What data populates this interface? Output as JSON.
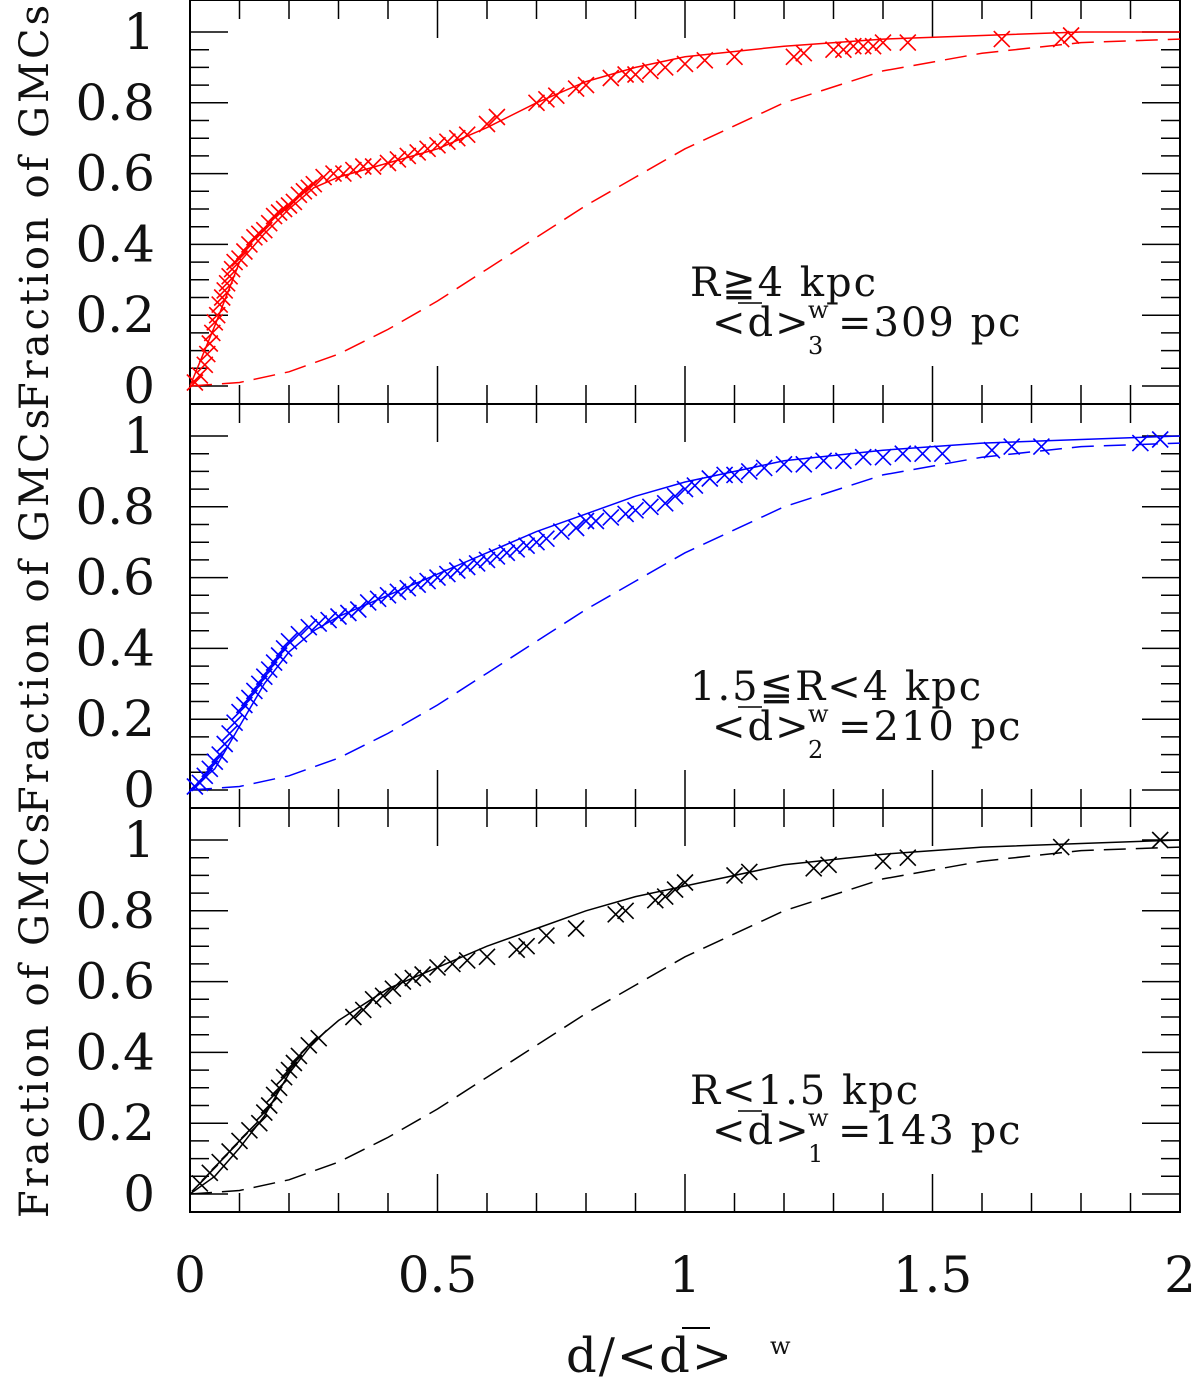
{
  "chart_data": {
    "type": "line",
    "xlabel": "d/<d>",
    "xlabel_sup": "w",
    "ylabel": "Fraction of GMCs",
    "xlim": [
      0,
      2
    ],
    "ylim": [
      0,
      1.05
    ],
    "x_ticks": [
      0,
      0.5,
      1,
      1.5,
      2
    ],
    "x_tick_labels": [
      "0",
      "0.5",
      "1",
      "1.5",
      "2"
    ],
    "y_ticks": [
      0,
      0.2,
      0.4,
      0.6,
      0.8,
      1
    ],
    "y_tick_labels": [
      "0",
      "0.2",
      "0.4",
      "0.6",
      "0.8",
      "1"
    ],
    "panels": [
      {
        "name": "outer",
        "color": "#ff0000",
        "annotation_line1": "R≧4 kpc",
        "annotation_line2_pre": "<d>",
        "annotation_sup": "w",
        "annotation_sub": "3",
        "annotation_line2_post": "=309 pc",
        "fit_curve": {
          "x": [
            0,
            0.05,
            0.1,
            0.15,
            0.2,
            0.25,
            0.3,
            0.4,
            0.5,
            0.6,
            0.7,
            0.8,
            0.9,
            1.0,
            1.2,
            1.4,
            1.6,
            1.8,
            2.0
          ],
          "y": [
            0,
            0.17,
            0.35,
            0.43,
            0.5,
            0.56,
            0.59,
            0.63,
            0.67,
            0.73,
            0.8,
            0.86,
            0.9,
            0.93,
            0.96,
            0.98,
            0.99,
            1.0,
            1.0
          ]
        },
        "random_curve": {
          "x": [
            0,
            0.1,
            0.2,
            0.3,
            0.4,
            0.5,
            0.6,
            0.7,
            0.8,
            0.9,
            1.0,
            1.2,
            1.4,
            1.6,
            1.8,
            2.0
          ],
          "y": [
            0,
            0.01,
            0.04,
            0.09,
            0.16,
            0.24,
            0.33,
            0.42,
            0.51,
            0.59,
            0.67,
            0.8,
            0.89,
            0.94,
            0.97,
            0.98
          ]
        },
        "points": {
          "x": [
            0.01,
            0.02,
            0.03,
            0.035,
            0.04,
            0.045,
            0.05,
            0.055,
            0.06,
            0.065,
            0.07,
            0.075,
            0.08,
            0.085,
            0.09,
            0.1,
            0.11,
            0.12,
            0.13,
            0.14,
            0.15,
            0.16,
            0.17,
            0.18,
            0.19,
            0.2,
            0.21,
            0.22,
            0.23,
            0.24,
            0.25,
            0.27,
            0.29,
            0.31,
            0.33,
            0.35,
            0.37,
            0.4,
            0.42,
            0.44,
            0.46,
            0.48,
            0.5,
            0.52,
            0.54,
            0.56,
            0.6,
            0.62,
            0.7,
            0.72,
            0.74,
            0.78,
            0.8,
            0.85,
            0.88,
            0.9,
            0.93,
            0.96,
            1.0,
            1.04,
            1.1,
            1.22,
            1.24,
            1.3,
            1.32,
            1.34,
            1.36,
            1.38,
            1.4,
            1.45,
            1.64,
            1.76,
            1.78
          ],
          "y": [
            0.01,
            0.03,
            0.06,
            0.09,
            0.12,
            0.15,
            0.18,
            0.2,
            0.23,
            0.25,
            0.27,
            0.29,
            0.31,
            0.33,
            0.35,
            0.36,
            0.38,
            0.4,
            0.42,
            0.43,
            0.44,
            0.46,
            0.48,
            0.49,
            0.5,
            0.51,
            0.52,
            0.54,
            0.55,
            0.56,
            0.57,
            0.59,
            0.6,
            0.6,
            0.61,
            0.62,
            0.62,
            0.63,
            0.64,
            0.65,
            0.66,
            0.67,
            0.68,
            0.69,
            0.7,
            0.71,
            0.74,
            0.76,
            0.8,
            0.81,
            0.82,
            0.84,
            0.85,
            0.87,
            0.88,
            0.88,
            0.89,
            0.9,
            0.91,
            0.92,
            0.93,
            0.93,
            0.94,
            0.95,
            0.95,
            0.96,
            0.96,
            0.96,
            0.97,
            0.97,
            0.98,
            0.98,
            0.99
          ]
        }
      },
      {
        "name": "middle",
        "color": "#0000ff",
        "annotation_line1": "1.5≦R<4 kpc",
        "annotation_line2_pre": "<d>",
        "annotation_sup": "w",
        "annotation_sub": "2",
        "annotation_line2_post": "=210 pc",
        "fit_curve": {
          "x": [
            0,
            0.05,
            0.1,
            0.15,
            0.2,
            0.25,
            0.3,
            0.4,
            0.5,
            0.6,
            0.7,
            0.8,
            0.9,
            1.0,
            1.2,
            1.4,
            1.6,
            1.8,
            2.0
          ],
          "y": [
            0,
            0.06,
            0.18,
            0.3,
            0.39,
            0.45,
            0.49,
            0.55,
            0.61,
            0.67,
            0.73,
            0.78,
            0.83,
            0.87,
            0.93,
            0.96,
            0.98,
            0.99,
            1.0
          ]
        },
        "random_curve": {
          "x": [
            0,
            0.1,
            0.2,
            0.3,
            0.4,
            0.5,
            0.6,
            0.7,
            0.8,
            0.9,
            1.0,
            1.2,
            1.4,
            1.6,
            1.8,
            2.0
          ],
          "y": [
            0,
            0.01,
            0.04,
            0.09,
            0.16,
            0.24,
            0.33,
            0.42,
            0.51,
            0.59,
            0.67,
            0.8,
            0.89,
            0.94,
            0.97,
            0.98
          ]
        },
        "points": {
          "x": [
            0.01,
            0.02,
            0.03,
            0.04,
            0.05,
            0.06,
            0.07,
            0.08,
            0.09,
            0.1,
            0.11,
            0.12,
            0.13,
            0.14,
            0.15,
            0.16,
            0.17,
            0.18,
            0.19,
            0.2,
            0.22,
            0.24,
            0.26,
            0.28,
            0.3,
            0.32,
            0.34,
            0.36,
            0.38,
            0.4,
            0.42,
            0.44,
            0.46,
            0.48,
            0.5,
            0.52,
            0.54,
            0.56,
            0.58,
            0.6,
            0.62,
            0.64,
            0.66,
            0.68,
            0.7,
            0.72,
            0.75,
            0.78,
            0.8,
            0.82,
            0.85,
            0.88,
            0.9,
            0.93,
            0.96,
            0.98,
            1.0,
            1.02,
            1.05,
            1.08,
            1.1,
            1.13,
            1.16,
            1.2,
            1.24,
            1.28,
            1.32,
            1.36,
            1.4,
            1.44,
            1.48,
            1.52,
            1.62,
            1.66,
            1.72,
            1.92,
            1.96
          ],
          "y": [
            0.01,
            0.02,
            0.04,
            0.06,
            0.08,
            0.1,
            0.13,
            0.16,
            0.19,
            0.22,
            0.24,
            0.26,
            0.28,
            0.3,
            0.32,
            0.34,
            0.36,
            0.38,
            0.4,
            0.42,
            0.44,
            0.46,
            0.47,
            0.48,
            0.49,
            0.5,
            0.51,
            0.53,
            0.54,
            0.55,
            0.56,
            0.57,
            0.58,
            0.59,
            0.6,
            0.61,
            0.62,
            0.63,
            0.64,
            0.65,
            0.66,
            0.67,
            0.68,
            0.69,
            0.7,
            0.71,
            0.73,
            0.74,
            0.76,
            0.76,
            0.77,
            0.78,
            0.79,
            0.8,
            0.81,
            0.83,
            0.85,
            0.86,
            0.88,
            0.89,
            0.89,
            0.9,
            0.91,
            0.92,
            0.92,
            0.93,
            0.93,
            0.94,
            0.94,
            0.95,
            0.95,
            0.95,
            0.96,
            0.97,
            0.97,
            0.98,
            0.99
          ]
        }
      },
      {
        "name": "inner",
        "color": "#000000",
        "annotation_line1": "R<1.5 kpc",
        "annotation_line2_pre": "<d>",
        "annotation_sup": "w",
        "annotation_sub": "1",
        "annotation_line2_post": "=143 pc",
        "fit_curve": {
          "x": [
            0,
            0.05,
            0.1,
            0.15,
            0.2,
            0.25,
            0.3,
            0.4,
            0.5,
            0.6,
            0.7,
            0.8,
            0.9,
            1.0,
            1.2,
            1.4,
            1.6,
            1.8,
            2.0
          ],
          "y": [
            0,
            0.05,
            0.13,
            0.22,
            0.34,
            0.43,
            0.49,
            0.58,
            0.64,
            0.7,
            0.75,
            0.8,
            0.84,
            0.87,
            0.93,
            0.96,
            0.98,
            0.99,
            1.0
          ]
        },
        "random_curve": {
          "x": [
            0,
            0.1,
            0.2,
            0.3,
            0.4,
            0.5,
            0.6,
            0.7,
            0.8,
            0.9,
            1.0,
            1.2,
            1.4,
            1.6,
            1.8,
            2.0
          ],
          "y": [
            0,
            0.01,
            0.04,
            0.09,
            0.16,
            0.24,
            0.33,
            0.42,
            0.51,
            0.59,
            0.67,
            0.8,
            0.89,
            0.94,
            0.97,
            0.98
          ]
        },
        "points": {
          "x": [
            0.02,
            0.04,
            0.06,
            0.08,
            0.1,
            0.12,
            0.14,
            0.15,
            0.16,
            0.17,
            0.18,
            0.19,
            0.2,
            0.21,
            0.22,
            0.24,
            0.26,
            0.33,
            0.35,
            0.37,
            0.39,
            0.41,
            0.43,
            0.45,
            0.47,
            0.5,
            0.53,
            0.56,
            0.6,
            0.66,
            0.68,
            0.72,
            0.78,
            0.86,
            0.88,
            0.94,
            0.96,
            0.98,
            1.0,
            1.1,
            1.13,
            1.26,
            1.29,
            1.4,
            1.45,
            1.76,
            1.96
          ],
          "y": [
            0.03,
            0.06,
            0.09,
            0.12,
            0.15,
            0.18,
            0.2,
            0.23,
            0.25,
            0.28,
            0.3,
            0.33,
            0.35,
            0.37,
            0.39,
            0.42,
            0.44,
            0.5,
            0.52,
            0.55,
            0.56,
            0.58,
            0.6,
            0.61,
            0.62,
            0.64,
            0.65,
            0.66,
            0.67,
            0.69,
            0.7,
            0.73,
            0.75,
            0.79,
            0.8,
            0.83,
            0.84,
            0.86,
            0.88,
            0.9,
            0.91,
            0.92,
            0.93,
            0.94,
            0.95,
            0.98,
            1.0
          ]
        }
      }
    ]
  }
}
